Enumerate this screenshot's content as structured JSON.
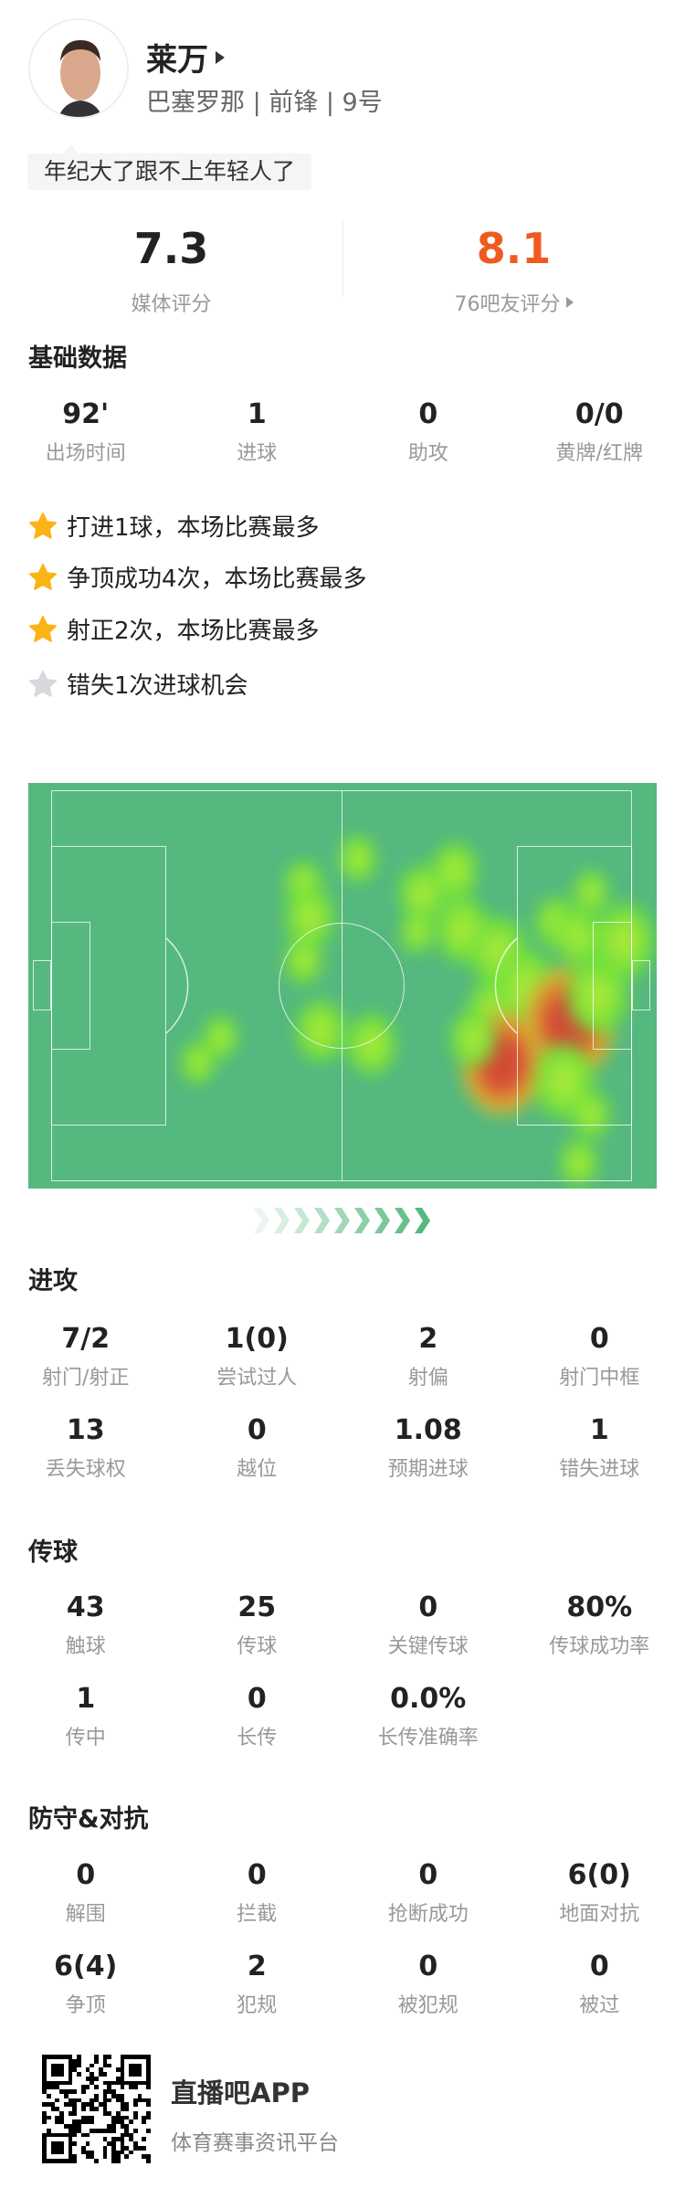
{
  "player": {
    "name": "莱万",
    "team": "巴塞罗那",
    "position": "前锋",
    "number": "9号",
    "comment": "年纪大了跟不上年轻人了"
  },
  "ratings": {
    "media": {
      "value": "7.3",
      "label": "媒体评分"
    },
    "fans": {
      "value": "8.1",
      "label": "76吧友评分",
      "color": "#f05a22"
    }
  },
  "basic": {
    "title": "基础数据",
    "stats": [
      {
        "value": "92'",
        "label": "出场时间"
      },
      {
        "value": "1",
        "label": "进球"
      },
      {
        "value": "0",
        "label": "助攻"
      },
      {
        "value": "0/0",
        "label": "黄牌/红牌"
      }
    ]
  },
  "highlights": [
    {
      "text": "打进1球，本场比赛最多",
      "icon": "star-gold"
    },
    {
      "text": "争顶成功4次，本场比赛最多",
      "icon": "star-gold"
    },
    {
      "text": "射正2次，本场比赛最多",
      "icon": "star-gold"
    },
    {
      "text": "错失1次进球机会",
      "icon": "star-gray"
    }
  ],
  "attack": {
    "title": "进攻",
    "stats": [
      {
        "value": "7/2",
        "label": "射门/射正"
      },
      {
        "value": "1(0)",
        "label": "尝试过人"
      },
      {
        "value": "2",
        "label": "射偏"
      },
      {
        "value": "0",
        "label": "射门中框"
      },
      {
        "value": "13",
        "label": "丢失球权"
      },
      {
        "value": "0",
        "label": "越位"
      },
      {
        "value": "1.08",
        "label": "预期进球"
      },
      {
        "value": "1",
        "label": "错失进球"
      }
    ]
  },
  "passing": {
    "title": "传球",
    "stats": [
      {
        "value": "43",
        "label": "触球"
      },
      {
        "value": "25",
        "label": "传球"
      },
      {
        "value": "0",
        "label": "关键传球"
      },
      {
        "value": "80%",
        "label": "传球成功率"
      },
      {
        "value": "1",
        "label": "传中"
      },
      {
        "value": "0",
        "label": "长传"
      },
      {
        "value": "0.0%",
        "label": "长传准确率"
      }
    ]
  },
  "defense": {
    "title": "防守&对抗",
    "stats": [
      {
        "value": "0",
        "label": "解围"
      },
      {
        "value": "0",
        "label": "拦截"
      },
      {
        "value": "0",
        "label": "抢断成功"
      },
      {
        "value": "6(0)",
        "label": "地面对抗"
      },
      {
        "value": "6(4)",
        "label": "争顶"
      },
      {
        "value": "2",
        "label": "犯规"
      },
      {
        "value": "0",
        "label": "被犯规"
      },
      {
        "value": "0",
        "label": "被过"
      }
    ]
  },
  "footer": {
    "app": "直播吧APP",
    "tagline": "体育赛事资讯平台"
  },
  "colors": {
    "pitch": "#55b87f",
    "star": "#fbb316",
    "accent": "#f05a22"
  }
}
